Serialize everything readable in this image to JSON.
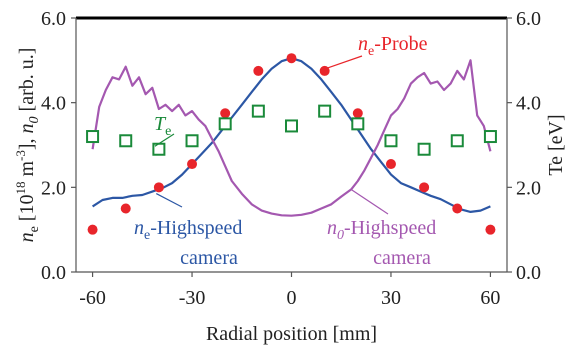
{
  "chart_data": {
    "type": "scatter",
    "x_axis": {
      "label": "Radial position [mm]",
      "range": [
        -65,
        65
      ],
      "ticks": [
        -60,
        -30,
        0,
        30,
        60
      ],
      "tick_labels": [
        "-60",
        "-30",
        "0",
        "30",
        "60"
      ]
    },
    "y_axis_left": {
      "label": "ne [10^18 m^-3], n0 [arb. u.]",
      "range": [
        0,
        6
      ],
      "ticks": [
        0,
        2,
        4,
        6
      ],
      "tick_labels": [
        "0.0",
        "2.0",
        "4.0",
        "6.0"
      ]
    },
    "y_axis_right": {
      "label": "Te [eV]",
      "range": [
        0,
        6
      ],
      "ticks": [
        0,
        2,
        4,
        6
      ],
      "tick_labels": [
        "0.0",
        "2.0",
        "4.0",
        "6.0"
      ]
    },
    "grid": false,
    "series": [
      {
        "name": "ne-Probe",
        "kind": "points",
        "marker": "filled-circle",
        "color": "#e8252b",
        "x": [
          -60,
          -50,
          -40,
          -30,
          -20,
          -10,
          0,
          10,
          20,
          30,
          40,
          50,
          60
        ],
        "y": [
          1.0,
          1.5,
          2.0,
          2.55,
          3.75,
          4.75,
          5.05,
          4.75,
          3.75,
          2.55,
          2.0,
          1.5,
          1.0
        ]
      },
      {
        "name": "Te",
        "kind": "points",
        "marker": "open-square",
        "color": "#1a8a3a",
        "x": [
          -60,
          -50,
          -40,
          -30,
          -20,
          -10,
          0,
          10,
          20,
          30,
          40,
          50,
          60
        ],
        "y": [
          3.2,
          3.1,
          2.9,
          3.1,
          3.5,
          3.8,
          3.45,
          3.8,
          3.5,
          3.1,
          2.9,
          3.1,
          3.2
        ]
      },
      {
        "name": "ne-Highspeed camera",
        "kind": "line",
        "color": "#2c57a5",
        "x": [
          -60,
          -57,
          -54,
          -51,
          -48,
          -45,
          -42,
          -39,
          -36,
          -33,
          -30,
          -27,
          -24,
          -21,
          -18,
          -15,
          -12,
          -9,
          -6,
          -3,
          0,
          3,
          6,
          9,
          12,
          15,
          18,
          21,
          24,
          27,
          30,
          33,
          36,
          39,
          42,
          45,
          48,
          51,
          54,
          57,
          60
        ],
        "y": [
          1.55,
          1.7,
          1.75,
          1.75,
          1.8,
          1.82,
          1.9,
          1.98,
          2.1,
          2.3,
          2.55,
          2.8,
          3.05,
          3.35,
          3.65,
          3.95,
          4.25,
          4.55,
          4.8,
          4.98,
          5.05,
          4.98,
          4.8,
          4.55,
          4.25,
          3.95,
          3.6,
          3.25,
          2.9,
          2.6,
          2.3,
          2.1,
          2.0,
          1.9,
          1.8,
          1.72,
          1.6,
          1.48,
          1.42,
          1.45,
          1.55
        ]
      },
      {
        "name": "n0-Highspeed camera",
        "kind": "line",
        "color": "#a458b0",
        "x": [
          -60,
          -58,
          -56,
          -54,
          -52,
          -50,
          -48,
          -46,
          -44,
          -42,
          -40,
          -38,
          -36,
          -34,
          -32,
          -30,
          -28,
          -26,
          -24,
          -22,
          -20,
          -18,
          -15,
          -12,
          -9,
          -6,
          -3,
          0,
          3,
          6,
          9,
          12,
          15,
          18,
          20,
          22,
          24,
          26,
          28,
          30,
          32,
          34,
          36,
          38,
          40,
          42,
          44,
          46,
          48,
          50,
          52,
          54,
          56,
          58,
          60
        ],
        "y": [
          2.9,
          3.9,
          4.3,
          4.6,
          4.55,
          4.85,
          4.4,
          4.6,
          4.2,
          4.35,
          3.85,
          3.95,
          3.8,
          3.95,
          3.7,
          3.8,
          3.6,
          3.45,
          3.15,
          2.85,
          2.5,
          2.15,
          1.85,
          1.6,
          1.45,
          1.38,
          1.34,
          1.33,
          1.35,
          1.4,
          1.5,
          1.6,
          1.78,
          1.95,
          2.15,
          2.4,
          2.7,
          3.0,
          3.35,
          3.7,
          3.85,
          4.1,
          4.45,
          4.6,
          4.7,
          4.45,
          4.5,
          4.3,
          4.45,
          4.75,
          4.55,
          5.0,
          3.7,
          3.45,
          2.85
        ]
      }
    ],
    "annotations": [
      {
        "text": "ne-Probe",
        "base": "n",
        "sub": "e",
        "rest": "-Probe",
        "color": "#e8252b"
      },
      {
        "text": "Te",
        "base": "T",
        "sub": "e",
        "color": "#1a8a3a"
      },
      {
        "text": "ne-Highspeed camera",
        "base": "n",
        "sub": "e",
        "rest": "-Highspeed",
        "line2": "camera",
        "color": "#2c57a5"
      },
      {
        "text": "n0-Highspeed camera",
        "base": "n",
        "sub": "0",
        "rest": "-Highspeed",
        "line2": "camera",
        "color": "#a458b0"
      }
    ]
  }
}
